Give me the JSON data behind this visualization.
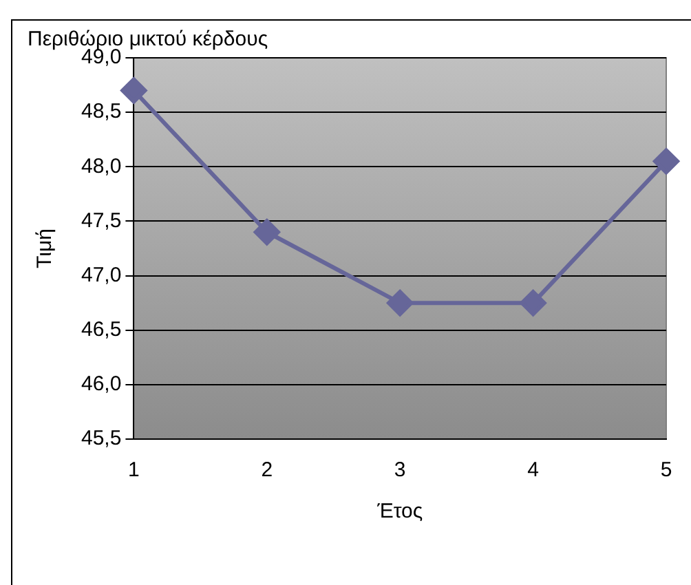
{
  "chart_data": {
    "type": "line",
    "title": "Περιθώριο μικτού κέρδους",
    "xlabel": "Έτος",
    "ylabel": "Τιμή",
    "categories": [
      "1",
      "2",
      "3",
      "4",
      "5"
    ],
    "series": [
      {
        "color": "#666699",
        "values": [
          48.7,
          47.4,
          46.75,
          46.75,
          48.05
        ]
      }
    ],
    "ylim": [
      45.5,
      49
    ],
    "yticks": [
      {
        "value": 45.5,
        "label": "45,5"
      },
      {
        "value": 46,
        "label": "46,0"
      },
      {
        "value": 46.5,
        "label": "46,5"
      },
      {
        "value": 47,
        "label": "47,0"
      },
      {
        "value": 47.5,
        "label": "47,5"
      },
      {
        "value": 48,
        "label": "48,0"
      },
      {
        "value": 48.5,
        "label": "48,5"
      },
      {
        "value": 49,
        "label": "49,0"
      }
    ],
    "grid": "y",
    "legend": false,
    "marker": "diamond",
    "line_style": "solid"
  }
}
